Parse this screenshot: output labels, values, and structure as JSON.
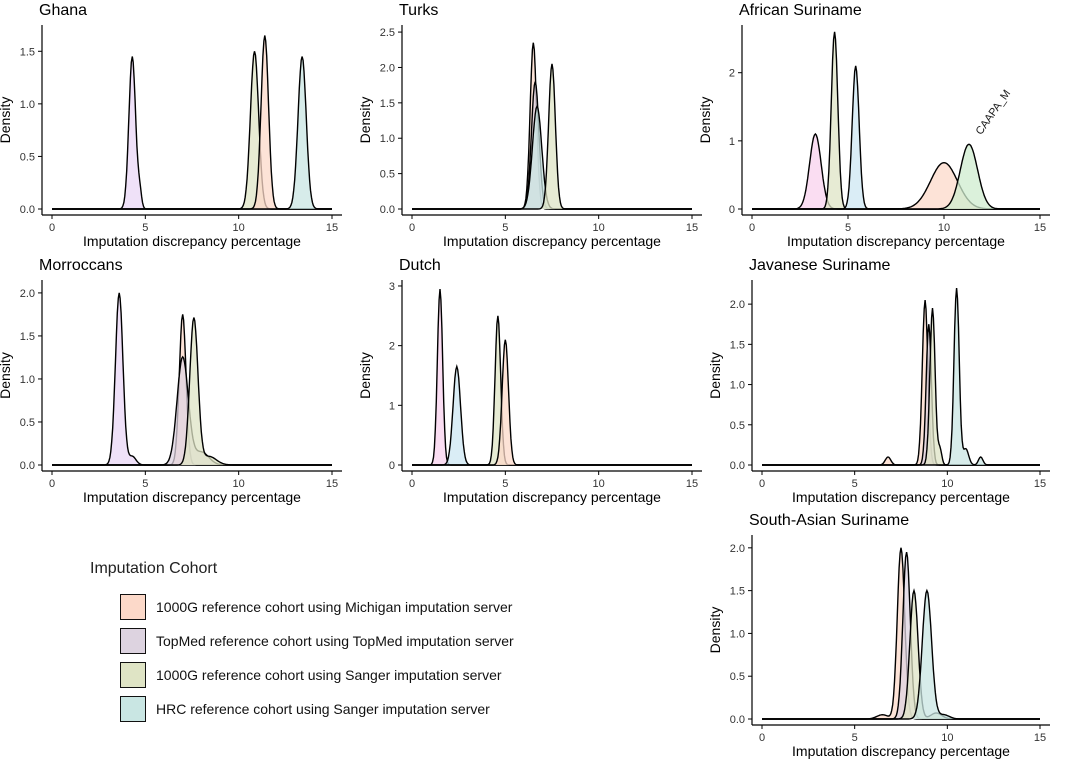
{
  "colors": {
    "michigan_1000g": "#fcd9c9",
    "topmed": "#ddd3e0",
    "sanger_1000g": "#dfe4c5",
    "sanger_hrc": "#c9e6e3",
    "purple_extra": "#ead7f5",
    "pink_extra": "#f8d2ee",
    "green_extra": "#cfeccf",
    "blue_extra": "#cde7f3",
    "line": "#000000"
  },
  "legend": {
    "title": "Imputation Cohort",
    "items": [
      {
        "label": "1000G reference cohort using Michigan imputation server",
        "color": "#fcd9c9"
      },
      {
        "label": "TopMed reference cohort using TopMed imputation server",
        "color": "#ddd3e0"
      },
      {
        "label": "1000G reference cohort using Sanger imputation server",
        "color": "#dfe4c5"
      },
      {
        "label": "HRC reference cohort using Sanger imputation server",
        "color": "#c9e6e3"
      }
    ]
  },
  "chart_data": [
    {
      "type": "area",
      "title": "Ghana",
      "xlabel": "Imputation discrepancy percentage",
      "ylabel": "Density",
      "xlim": [
        0,
        15
      ],
      "ylim": [
        0,
        1.75
      ],
      "xticks": [
        "0",
        "5",
        "10",
        "15"
      ],
      "yticks": [
        "0.0",
        "0.5",
        "1.0",
        "1.5"
      ],
      "ytick_values": [
        0,
        0.5,
        1.0,
        1.5
      ],
      "series": [
        {
          "name": "peak 4.3",
          "color": "#ead7f5",
          "peaks": [
            {
              "mu": 4.3,
              "sd": 0.18,
              "h": 1.45
            },
            {
              "mu": 4.7,
              "sd": 0.1,
              "h": 0.15
            }
          ]
        },
        {
          "name": "peak 10.8",
          "color": "#dfe4c5",
          "peaks": [
            {
              "mu": 10.85,
              "sd": 0.22,
              "h": 1.5
            }
          ]
        },
        {
          "name": "peak 11.4",
          "color": "#fcd9c9",
          "peaks": [
            {
              "mu": 11.4,
              "sd": 0.2,
              "h": 1.65
            }
          ]
        },
        {
          "name": "peak 13.4",
          "color": "#c9e6e3",
          "peaks": [
            {
              "mu": 13.4,
              "sd": 0.22,
              "h": 1.45
            }
          ]
        }
      ]
    },
    {
      "type": "area",
      "title": "Turks",
      "xlabel": "Imputation discrepancy percentage",
      "ylabel": "Density",
      "xlim": [
        0,
        15
      ],
      "ylim": [
        0,
        2.6
      ],
      "xticks": [
        "0",
        "5",
        "10",
        "15"
      ],
      "yticks": [
        "0.0",
        "0.5",
        "1.0",
        "1.5",
        "2.0",
        "2.5"
      ],
      "ytick_values": [
        0,
        0.5,
        1.0,
        1.5,
        2.0,
        2.5
      ],
      "series": [
        {
          "name": "peak 6.5",
          "color": "#fcd9c9",
          "peaks": [
            {
              "mu": 6.5,
              "sd": 0.17,
              "h": 2.35
            }
          ]
        },
        {
          "name": "peak 6.6",
          "color": "#ddd3e0",
          "peaks": [
            {
              "mu": 6.6,
              "sd": 0.2,
              "h": 1.8
            }
          ]
        },
        {
          "name": "peak 6.7",
          "color": "#c9e6e3",
          "peaks": [
            {
              "mu": 6.7,
              "sd": 0.25,
              "h": 1.45
            }
          ]
        },
        {
          "name": "peak 7.5",
          "color": "#dfe4c5",
          "peaks": [
            {
              "mu": 7.5,
              "sd": 0.18,
              "h": 2.05
            }
          ]
        }
      ]
    },
    {
      "type": "area",
      "title": "African Suriname",
      "xlabel": "Imputation discrepancy percentage",
      "ylabel": "Density",
      "xlim": [
        0,
        15
      ],
      "ylim": [
        0,
        2.7
      ],
      "xticks": [
        "0",
        "5",
        "10",
        "15"
      ],
      "yticks": [
        "0",
        "1",
        "2"
      ],
      "ytick_values": [
        0,
        1,
        2
      ],
      "annotation": {
        "text": "CAAPA_M",
        "x": 11.2,
        "y": 1.05
      },
      "series": [
        {
          "name": "peak 3.3",
          "color": "#f8d2ee",
          "peaks": [
            {
              "mu": 3.3,
              "sd": 0.3,
              "h": 1.1
            }
          ]
        },
        {
          "name": "peak 4.3",
          "color": "#dfe4c5",
          "peaks": [
            {
              "mu": 4.3,
              "sd": 0.17,
              "h": 2.6
            }
          ]
        },
        {
          "name": "peak 5.4",
          "color": "#cde7f3",
          "peaks": [
            {
              "mu": 5.4,
              "sd": 0.18,
              "h": 2.1
            }
          ]
        },
        {
          "name": "peak 10.0",
          "color": "#fcd9c9",
          "peaks": [
            {
              "mu": 10.0,
              "sd": 0.7,
              "h": 0.68
            }
          ]
        },
        {
          "name": "peak 11.3",
          "color": "#cfeccf",
          "peaks": [
            {
              "mu": 11.3,
              "sd": 0.45,
              "h": 0.95
            }
          ]
        }
      ]
    },
    {
      "type": "area",
      "title": "Morroccans",
      "xlabel": "Imputation discrepancy percentage",
      "ylabel": "Density",
      "xlim": [
        0,
        15
      ],
      "ylim": [
        0,
        2.15
      ],
      "xticks": [
        "0",
        "5",
        "10",
        "15"
      ],
      "yticks": [
        "0.0",
        "0.5",
        "1.0",
        "1.5",
        "2.0"
      ],
      "ytick_values": [
        0,
        0.5,
        1.0,
        1.5,
        2.0
      ],
      "series": [
        {
          "name": "peak 3.6",
          "color": "#ead7f5",
          "peaks": [
            {
              "mu": 3.6,
              "sd": 0.2,
              "h": 2.0
            },
            {
              "mu": 4.3,
              "sd": 0.2,
              "h": 0.1
            }
          ]
        },
        {
          "name": "peak 7.0",
          "color": "#fcd9c9",
          "peaks": [
            {
              "mu": 7.0,
              "sd": 0.18,
              "h": 1.75
            }
          ]
        },
        {
          "name": "peak 7.0b",
          "color": "#ddd3e0",
          "peaks": [
            {
              "mu": 7.0,
              "sd": 0.3,
              "h": 1.25
            },
            {
              "mu": 8.0,
              "sd": 0.4,
              "h": 0.15
            }
          ]
        },
        {
          "name": "peak 7.6",
          "color": "#dfe4c5",
          "peaks": [
            {
              "mu": 7.6,
              "sd": 0.22,
              "h": 1.7
            },
            {
              "mu": 8.4,
              "sd": 0.4,
              "h": 0.1
            }
          ]
        }
      ]
    },
    {
      "type": "area",
      "title": "Dutch",
      "xlabel": "Imputation discrepancy percentage",
      "ylabel": "Density",
      "xlim": [
        0,
        15
      ],
      "ylim": [
        0,
        3.1
      ],
      "xticks": [
        "0",
        "5",
        "10",
        "15"
      ],
      "yticks": [
        "0",
        "1",
        "2",
        "3"
      ],
      "ytick_values": [
        0,
        1,
        2,
        3
      ],
      "series": [
        {
          "name": "peak 1.5",
          "color": "#f8d2ee",
          "peaks": [
            {
              "mu": 1.5,
              "sd": 0.14,
              "h": 2.95
            }
          ]
        },
        {
          "name": "peak 2.4",
          "color": "#cde7f3",
          "peaks": [
            {
              "mu": 2.4,
              "sd": 0.2,
              "h": 1.65
            }
          ]
        },
        {
          "name": "peak 4.6",
          "color": "#dfe4c5",
          "peaks": [
            {
              "mu": 4.6,
              "sd": 0.15,
              "h": 2.5
            }
          ]
        },
        {
          "name": "peak 5.0",
          "color": "#fcd9c9",
          "peaks": [
            {
              "mu": 5.0,
              "sd": 0.17,
              "h": 2.1
            }
          ]
        }
      ]
    },
    {
      "type": "area",
      "title": "Javanese Suriname",
      "xlabel": "Imputation discrepancy percentage",
      "ylabel": "Density",
      "xlim": [
        0,
        15
      ],
      "ylim": [
        0,
        2.3
      ],
      "xticks": [
        "0",
        "5",
        "10",
        "15"
      ],
      "yticks": [
        "0.0",
        "0.5",
        "1.0",
        "1.5",
        "2.0"
      ],
      "ytick_values": [
        0,
        0.5,
        1.0,
        1.5,
        2.0
      ],
      "series": [
        {
          "name": "peak 8.8",
          "color": "#fcd9c9",
          "peaks": [
            {
              "mu": 8.8,
              "sd": 0.15,
              "h": 2.05
            },
            {
              "mu": 6.8,
              "sd": 0.15,
              "h": 0.1
            }
          ]
        },
        {
          "name": "peak 9.0",
          "color": "#ddd3e0",
          "peaks": [
            {
              "mu": 9.0,
              "sd": 0.14,
              "h": 1.75
            }
          ]
        },
        {
          "name": "peak 9.2",
          "color": "#dfe4c5",
          "peaks": [
            {
              "mu": 9.2,
              "sd": 0.14,
              "h": 1.95
            },
            {
              "mu": 9.6,
              "sd": 0.1,
              "h": 0.2
            }
          ]
        },
        {
          "name": "peak 10.5",
          "color": "#c9e6e3",
          "peaks": [
            {
              "mu": 10.5,
              "sd": 0.14,
              "h": 2.2
            },
            {
              "mu": 11.0,
              "sd": 0.15,
              "h": 0.2
            },
            {
              "mu": 11.8,
              "sd": 0.12,
              "h": 0.1
            }
          ]
        }
      ]
    },
    {
      "type": "area",
      "title": "South-Asian Suriname",
      "xlabel": "Imputation discrepancy percentage",
      "ylabel": "Density",
      "xlim": [
        0,
        15
      ],
      "ylim": [
        0,
        2.15
      ],
      "xticks": [
        "0",
        "5",
        "10",
        "15"
      ],
      "yticks": [
        "0.0",
        "0.5",
        "1.0",
        "1.5",
        "2.0"
      ],
      "ytick_values": [
        0,
        0.5,
        1.0,
        1.5,
        2.0
      ],
      "series": [
        {
          "name": "peak 7.5",
          "color": "#fcd9c9",
          "peaks": [
            {
              "mu": 7.5,
              "sd": 0.2,
              "h": 2.0
            },
            {
              "mu": 6.5,
              "sd": 0.3,
              "h": 0.05
            }
          ]
        },
        {
          "name": "peak 7.8",
          "color": "#ddd3e0",
          "peaks": [
            {
              "mu": 7.8,
              "sd": 0.2,
              "h": 1.95
            }
          ]
        },
        {
          "name": "peak 8.2",
          "color": "#dfe4c5",
          "peaks": [
            {
              "mu": 8.2,
              "sd": 0.22,
              "h": 1.5
            },
            {
              "mu": 9.4,
              "sd": 0.3,
              "h": 0.07
            }
          ]
        },
        {
          "name": "peak 8.9",
          "color": "#c9e6e3",
          "peaks": [
            {
              "mu": 8.9,
              "sd": 0.25,
              "h": 1.5
            },
            {
              "mu": 9.8,
              "sd": 0.3,
              "h": 0.05
            }
          ]
        }
      ]
    }
  ]
}
